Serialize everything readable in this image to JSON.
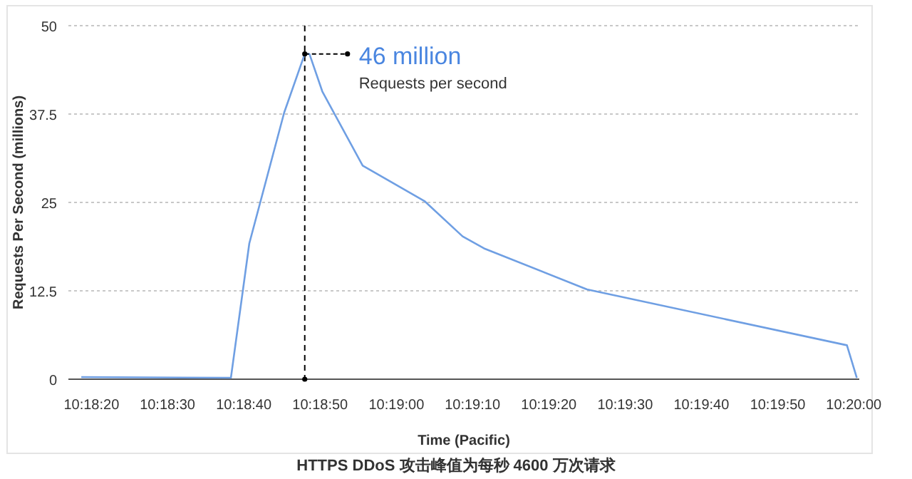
{
  "chart_data": {
    "type": "line",
    "xlabel": "Time (Pacific)",
    "ylabel": "Requests Per Second (millions)",
    "x": [
      10.30519,
      10.31064,
      10.31131,
      10.31258,
      10.31333,
      10.3135,
      10.31397,
      10.31544,
      10.31769,
      10.31908,
      10.31986,
      10.32361,
      10.33308,
      10.33344
    ],
    "series": [
      {
        "color": "#6f9fe3",
        "values": [
          0.3,
          0.2,
          19.2,
          37.7,
          46,
          46,
          40.7,
          30.2,
          25.2,
          20.2,
          18.5,
          12.7,
          4.8,
          0.2
        ]
      }
    ],
    "xlim": [
      10.30472,
      10.33353
    ],
    "xticks": [
      {
        "value": 10.30556,
        "label": "10:18:20"
      },
      {
        "value": 10.30833,
        "label": "10:18:30"
      },
      {
        "value": 10.31111,
        "label": "10:18:40"
      },
      {
        "value": 10.31389,
        "label": "10:18:50"
      },
      {
        "value": 10.31667,
        "label": "10:19:00"
      },
      {
        "value": 10.31944,
        "label": "10:19:10"
      },
      {
        "value": 10.32222,
        "label": "10:19:20"
      },
      {
        "value": 10.325,
        "label": "10:19:30"
      },
      {
        "value": 10.32778,
        "label": "10:19:40"
      },
      {
        "value": 10.33056,
        "label": "10:19:50"
      },
      {
        "value": 10.33333,
        "label": "10:20:00"
      }
    ],
    "ylim": [
      0,
      50
    ],
    "yticks": [
      0,
      12.5,
      25,
      37.5,
      50
    ],
    "grid": "y",
    "marker": "none",
    "line_style": "solid",
    "ref_lines": [
      {
        "axis": "x",
        "value": 10.31333,
        "color": "#000000",
        "line_style": "dashed"
      }
    ],
    "annotations": [
      {
        "text": "46 million",
        "x": 10.31333,
        "y": 46
      },
      "Requests per second",
      "HTTPS DDoS 攻击峰值为每秒 4600 万次请求"
    ]
  }
}
